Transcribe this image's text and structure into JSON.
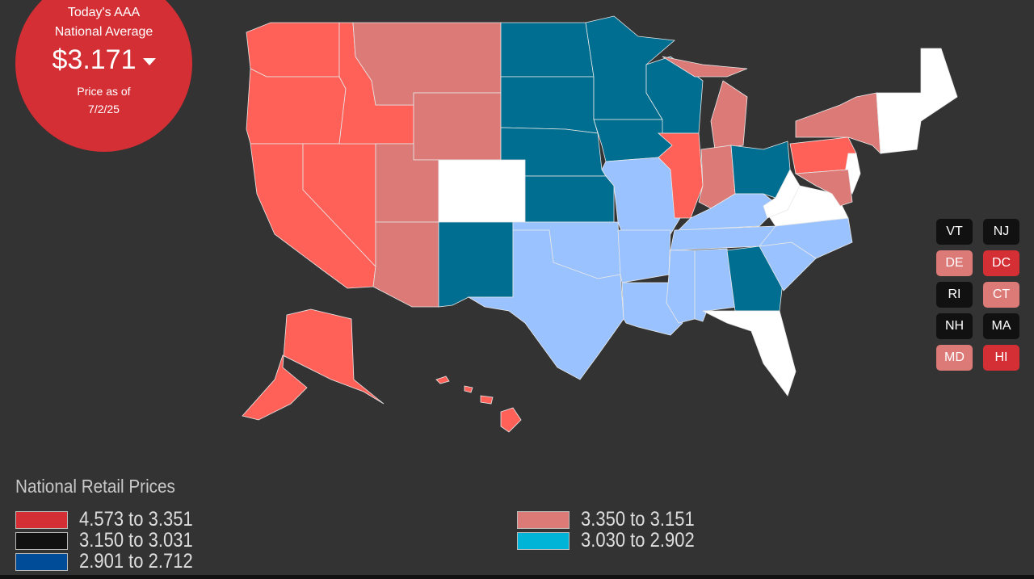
{
  "badge": {
    "line1": "Today's AAA",
    "line2": "National Average",
    "price": "$3.171",
    "trend_icon": "caret-down-icon",
    "line3": "Price as of",
    "date": "7/2/25"
  },
  "colors": {
    "high": "#ff6159",
    "mid_high": "#dc7a78",
    "teal": "#006e90",
    "light_blue": "#99c2ff",
    "white": "#ffffff",
    "badge_red": "#d32f35"
  },
  "small_states": [
    {
      "label": "VT",
      "color": "#111111"
    },
    {
      "label": "NJ",
      "color": "#111111"
    },
    {
      "label": "DE",
      "color": "#dc7a78"
    },
    {
      "label": "DC",
      "color": "#d32f35"
    },
    {
      "label": "RI",
      "color": "#111111"
    },
    {
      "label": "CT",
      "color": "#dc7a78"
    },
    {
      "label": "NH",
      "color": "#111111"
    },
    {
      "label": "MA",
      "color": "#111111"
    },
    {
      "label": "MD",
      "color": "#dc7a78"
    },
    {
      "label": "HI",
      "color": "#d32f35"
    }
  ],
  "legend": {
    "title": "National Retail Prices",
    "items": [
      {
        "label": "4.573 to 3.351",
        "color": "#d32f35"
      },
      {
        "label": "3.150 to 3.031",
        "color": "#111111"
      },
      {
        "label": "2.901 to 2.712",
        "color": "#004c99"
      },
      {
        "label": "3.350 to 3.151",
        "color": "#dc7a78"
      },
      {
        "label": "3.030 to 2.902",
        "color": "#00b4d8"
      }
    ]
  }
}
